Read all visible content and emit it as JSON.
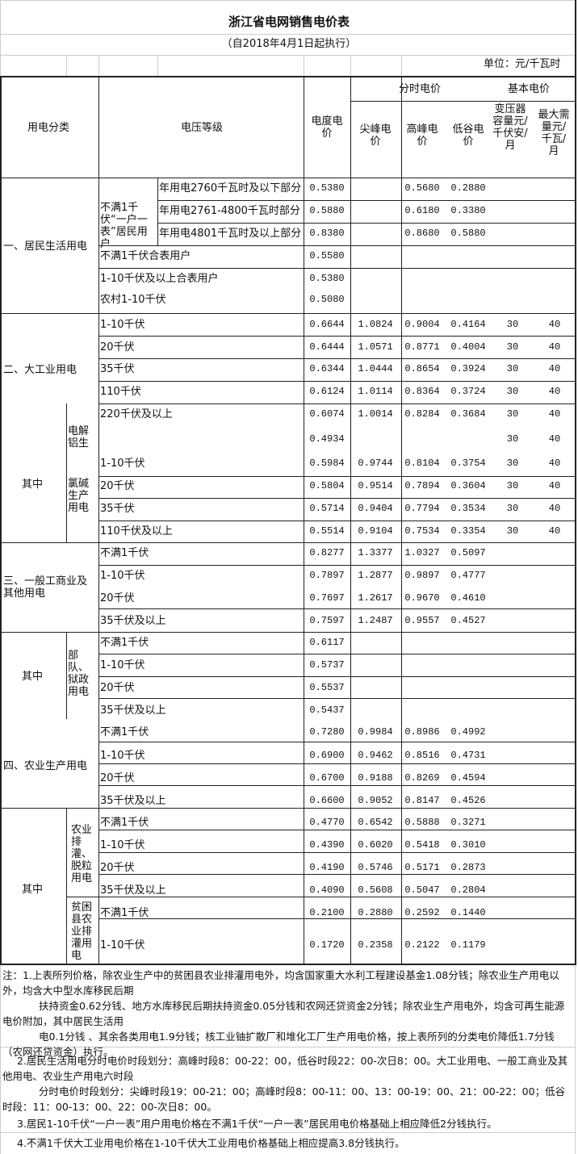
{
  "title": "浙江省电网销售电价表",
  "subtitle": "（自2018年4月1日起执行）",
  "unit": "单位：元/千瓦时",
  "header": {
    "category": "用电分类",
    "voltage": "电压等级",
    "energy_price": "电度电价",
    "tou_price": "分时电价",
    "basic_price": "基本电价",
    "sharp_peak": "尖峰电价",
    "peak": "高峰电价",
    "valley": "低谷电价",
    "transformer": "变压器容量元/千伏安/月",
    "max_demand": "最大需量元/千瓦/月"
  },
  "categories": {
    "residential": "一、居民生活用电",
    "residential_sub": "不满1千伏“一户一表”居民用户",
    "large_industrial": "二、大工业用电",
    "of_which_1": "其中",
    "aluminium": "电解铝生",
    "chlor_alkali": "氯碱生产用电",
    "commercial": "三、一般工商业及其他用电",
    "of_which_2": "其中",
    "military": "部队、狱政用电",
    "agriculture": "四、农业生产用电",
    "of_which_3": "其中",
    "irrigation": "农业排灌、脱粒用电",
    "poor_county": "贫困县农业排灌用电"
  },
  "rows": [
    [
      "年用电2760千瓦时及以下部分",
      "0.5380",
      "",
      "0.5680",
      "0.2880",
      "",
      ""
    ],
    [
      "年用电2761-4800千瓦时部分",
      "0.5880",
      "",
      "0.6180",
      "0.3380",
      "",
      ""
    ],
    [
      "年用电4801千瓦时及以上部分",
      "0.8380",
      "",
      "0.8680",
      "0.5880",
      "",
      ""
    ],
    [
      "不满1千伏合表用户",
      "0.5580",
      "",
      "",
      "",
      "",
      ""
    ],
    [
      "1-10千伏及以上合表用户",
      "0.5380",
      "",
      "",
      "",
      "",
      ""
    ],
    [
      "农村1-10千伏",
      "0.5080",
      "",
      "",
      "",
      "",
      ""
    ],
    [
      "1-10千伏",
      "0.6644",
      "1.0824",
      "0.9004",
      "0.4164",
      "30",
      "40"
    ],
    [
      "20千伏",
      "0.6444",
      "1.0571",
      "0.8771",
      "0.4004",
      "30",
      "40"
    ],
    [
      "35千伏",
      "0.6344",
      "1.0444",
      "0.8654",
      "0.3924",
      "30",
      "40"
    ],
    [
      "110千伏",
      "0.6124",
      "1.0114",
      "0.8364",
      "0.3724",
      "30",
      "40"
    ],
    [
      "220千伏及以上",
      "0.6074",
      "1.0014",
      "0.8284",
      "0.3684",
      "30",
      "40"
    ],
    [
      "",
      "0.4934",
      "",
      "",
      "",
      "30",
      "40"
    ],
    [
      "1-10千伏",
      "0.5984",
      "0.9744",
      "0.8104",
      "0.3754",
      "30",
      "40"
    ],
    [
      "20千伏",
      "0.5804",
      "0.9514",
      "0.7894",
      "0.3604",
      "30",
      "40"
    ],
    [
      "35千伏",
      "0.5714",
      "0.9404",
      "0.7794",
      "0.3534",
      "30",
      "40"
    ],
    [
      "110千伏及以上",
      "0.5514",
      "0.9104",
      "0.7534",
      "0.3354",
      "30",
      "40"
    ],
    [
      "不满1千伏",
      "0.8277",
      "1.3377",
      "1.0327",
      "0.5097",
      "",
      ""
    ],
    [
      "1-10千伏",
      "0.7897",
      "1.2877",
      "0.9897",
      "0.4777",
      "",
      ""
    ],
    [
      "20千伏",
      "0.7697",
      "1.2617",
      "0.9670",
      "0.4610",
      "",
      ""
    ],
    [
      "35千伏及以上",
      "0.7597",
      "1.2487",
      "0.9557",
      "0.4527",
      "",
      ""
    ],
    [
      "不满1千伏",
      "0.6117",
      "",
      "",
      "",
      "",
      ""
    ],
    [
      "1-10千伏",
      "0.5737",
      "",
      "",
      "",
      "",
      ""
    ],
    [
      "20千伏",
      "0.5537",
      "",
      "",
      "",
      "",
      ""
    ],
    [
      "35千伏及以上",
      "0.5437",
      "",
      "",
      "",
      "",
      ""
    ],
    [
      "不满1千伏",
      "0.7280",
      "0.9984",
      "0.8986",
      "0.4992",
      "",
      ""
    ],
    [
      "1-10千伏",
      "0.6900",
      "0.9462",
      "0.8516",
      "0.4731",
      "",
      ""
    ],
    [
      "20千伏",
      "0.6700",
      "0.9188",
      "0.8269",
      "0.4594",
      "",
      ""
    ],
    [
      "35千伏及以上",
      "0.6600",
      "0.9052",
      "0.8147",
      "0.4526",
      "",
      ""
    ],
    [
      "不满1千伏",
      "0.4770",
      "0.6542",
      "0.5888",
      "0.3271",
      "",
      ""
    ],
    [
      "1-10千伏",
      "0.4390",
      "0.6020",
      "0.5418",
      "0.3010",
      "",
      ""
    ],
    [
      "20千伏",
      "0.4190",
      "0.5746",
      "0.5171",
      "0.2873",
      "",
      ""
    ],
    [
      "35千伏及以上",
      "0.4090",
      "0.5608",
      "0.5047",
      "0.2804",
      "",
      ""
    ],
    [
      "不满1千伏",
      "0.2100",
      "0.2880",
      "0.2592",
      "0.1440",
      "",
      ""
    ],
    [
      "1-10千伏",
      "0.1720",
      "0.2358",
      "0.2122",
      "0.1179",
      "",
      ""
    ]
  ],
  "notes": [
    "注：1.上表所列价格，除农业生产中的贫困县农业排灌用电外，均含国家重大水利工程建设基金1.08分钱；除农业生产用电以外，均含大中型水库移民后期",
    "扶持资金0.62分钱、地方水库移民后期扶持资金0.05分钱和农网还贷资金2分钱；除农业生产用电外，均含可再生能源电价附加，其中居民生活用",
    "电0.1分钱 、其余各类用电1.9分钱；核工业铀扩散厂和堆化工厂生产用电价格，按上表所列的分类电价降低1.7分钱（农网还贷资金）执行。",
    "2.居民生活用电分时电价时段划分：高峰时段8：00-22：00，低谷时段22：00-次日8：00。大工业用电、一般工商业及其他用电、农业生产用电六时段",
    "分时电价时段划分：尖峰时段19：00-21：00；高峰时段8：00-11：00、13：00-19：00、21：00-22：00；低谷时段：11：00-13：00、22：00-次日8：00。",
    "3.居民1-10千伏“一户一表”用户用电价格在不满1千伏“一户一表”居民用电价格基础上相应降低2分钱执行。",
    "4.不满1千伏大工业用电价格在1-10千伏大工业用电价格基础上相应提高3.8分钱执行。"
  ]
}
